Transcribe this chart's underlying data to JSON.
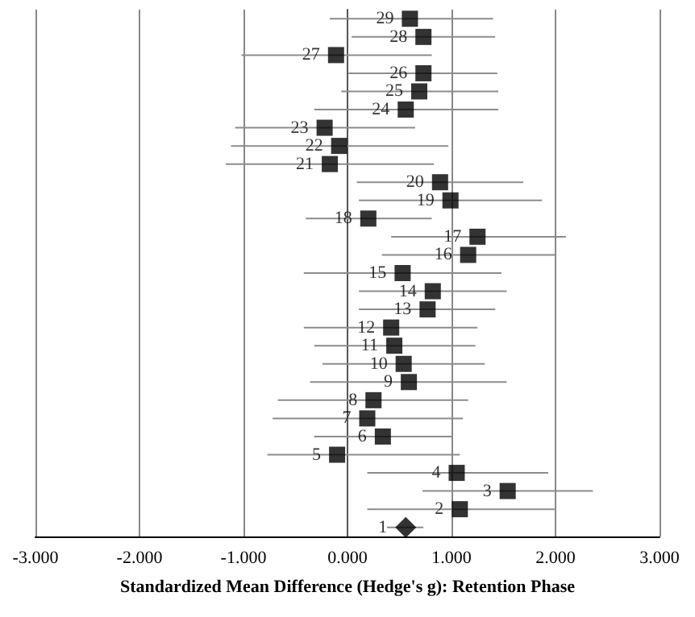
{
  "chart_data": {
    "type": "scatter",
    "orientation": "horizontal",
    "xlabel": "Standardized Mean Difference (Hedge's g): Retention Phase",
    "categories": [
      "29",
      "28",
      "27",
      "26",
      "25",
      "24",
      "23",
      "22",
      "21",
      "20",
      "19",
      "18",
      "17",
      "16",
      "15",
      "14",
      "13",
      "12",
      "11",
      "10",
      "9",
      "8",
      "7",
      "6",
      "5",
      "4",
      "3",
      "2",
      "1"
    ],
    "series": [
      {
        "color": "#000000",
        "marker": "square",
        "values": [
          0.6,
          0.73,
          -0.11,
          0.73,
          0.69,
          0.56,
          -0.22,
          -0.08,
          -0.17,
          0.89,
          0.99,
          0.2,
          1.25,
          1.16,
          0.53,
          0.82,
          0.77,
          0.42,
          0.45,
          0.54,
          0.59,
          0.25,
          0.19,
          0.34,
          -0.1,
          1.05,
          1.54,
          1.08,
          null
        ],
        "errors": [
          [
            -0.17,
            1.4
          ],
          [
            0.04,
            1.42
          ],
          [
            -1.02,
            0.81
          ],
          [
            0.01,
            1.44
          ],
          [
            -0.06,
            1.45
          ],
          [
            -0.32,
            1.45
          ],
          [
            -1.08,
            0.65
          ],
          [
            -1.12,
            0.97
          ],
          [
            -1.17,
            0.83
          ],
          [
            0.09,
            1.69
          ],
          [
            0.11,
            1.87
          ],
          [
            -0.4,
            0.81
          ],
          [
            0.42,
            2.1
          ],
          [
            0.33,
            2.0
          ],
          [
            -0.42,
            1.48
          ],
          [
            0.11,
            1.53
          ],
          [
            0.11,
            1.42
          ],
          [
            -0.42,
            1.25
          ],
          [
            -0.32,
            1.23
          ],
          [
            -0.24,
            1.32
          ],
          [
            -0.36,
            1.53
          ],
          [
            -0.67,
            1.16
          ],
          [
            -0.72,
            1.11
          ],
          [
            -0.32,
            1.0
          ],
          [
            -0.77,
            1.08
          ],
          [
            0.19,
            1.93
          ],
          [
            0.72,
            2.36
          ],
          [
            0.19,
            1.99
          ],
          null
        ]
      },
      {
        "color": "#000000",
        "marker": "diamond",
        "values": [
          null,
          null,
          null,
          null,
          null,
          null,
          null,
          null,
          null,
          null,
          null,
          null,
          null,
          null,
          null,
          null,
          null,
          null,
          null,
          null,
          null,
          null,
          null,
          null,
          null,
          null,
          null,
          null,
          0.56
        ],
        "errors": [
          null,
          null,
          null,
          null,
          null,
          null,
          null,
          null,
          null,
          null,
          null,
          null,
          null,
          null,
          null,
          null,
          null,
          null,
          null,
          null,
          null,
          null,
          null,
          null,
          null,
          null,
          null,
          null,
          [
            0.38,
            0.73
          ]
        ]
      }
    ],
    "xlim": [
      -3,
      3
    ],
    "xticks": [
      {
        "value": -3,
        "label": "-3.000"
      },
      {
        "value": -2,
        "label": "-2.000"
      },
      {
        "value": -1,
        "label": "-1.000"
      },
      {
        "value": 0,
        "label": "0.000"
      },
      {
        "value": 1,
        "label": "1.000"
      },
      {
        "value": 2,
        "label": "2.000"
      },
      {
        "value": 3,
        "label": "3.000"
      }
    ],
    "grid": "x",
    "tick_labels": "x"
  }
}
